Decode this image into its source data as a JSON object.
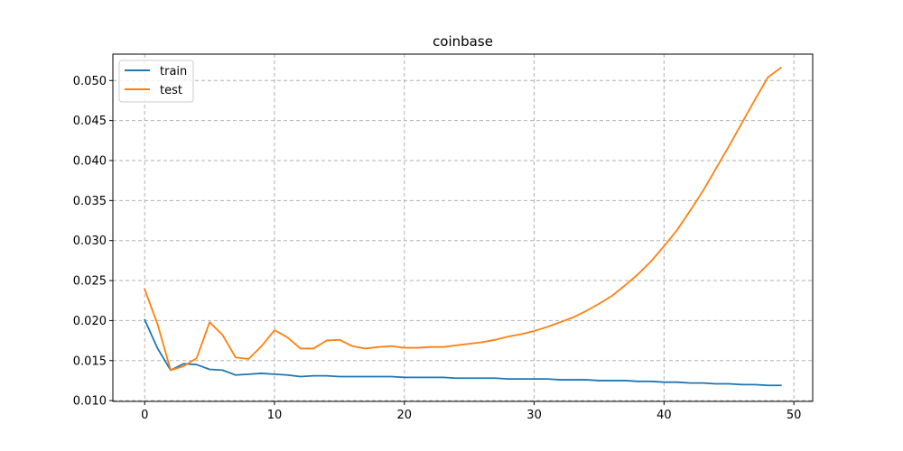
{
  "chart_data": {
    "type": "line",
    "title": "coinbase",
    "xlabel": "",
    "ylabel": "",
    "xlim": [
      -2.45,
      51.45
    ],
    "ylim": [
      0.0099,
      0.0533
    ],
    "xticks": [
      0,
      10,
      20,
      30,
      40,
      50
    ],
    "xtick_labels": [
      "0",
      "10",
      "20",
      "30",
      "40",
      "50"
    ],
    "yticks": [
      0.01,
      0.015,
      0.02,
      0.025,
      0.03,
      0.035,
      0.04,
      0.045,
      0.05
    ],
    "ytick_labels": [
      "0.010",
      "0.015",
      "0.020",
      "0.025",
      "0.030",
      "0.035",
      "0.040",
      "0.045",
      "0.050"
    ],
    "grid": true,
    "legend_position": "top-left",
    "x": [
      0,
      1,
      2,
      3,
      4,
      5,
      6,
      7,
      8,
      9,
      10,
      11,
      12,
      13,
      14,
      15,
      16,
      17,
      18,
      19,
      20,
      21,
      22,
      23,
      24,
      25,
      26,
      27,
      28,
      29,
      30,
      31,
      32,
      33,
      34,
      35,
      36,
      37,
      38,
      39,
      40,
      41,
      42,
      43,
      44,
      45,
      46,
      47,
      48,
      49
    ],
    "series": [
      {
        "name": "train",
        "color": "#1f77b4",
        "values": [
          0.0201,
          0.0165,
          0.0138,
          0.0146,
          0.0145,
          0.0139,
          0.0138,
          0.0132,
          0.0133,
          0.0134,
          0.0133,
          0.0132,
          0.013,
          0.0131,
          0.0131,
          0.013,
          0.013,
          0.013,
          0.013,
          0.013,
          0.0129,
          0.0129,
          0.0129,
          0.0129,
          0.0128,
          0.0128,
          0.0128,
          0.0128,
          0.0127,
          0.0127,
          0.0127,
          0.0127,
          0.0126,
          0.0126,
          0.0126,
          0.0125,
          0.0125,
          0.0125,
          0.0124,
          0.0124,
          0.0123,
          0.0123,
          0.0122,
          0.0122,
          0.0121,
          0.0121,
          0.012,
          0.012,
          0.0119,
          0.0119
        ]
      },
      {
        "name": "test",
        "color": "#ff7f0e",
        "values": [
          0.0239,
          0.0195,
          0.0138,
          0.0143,
          0.0153,
          0.0198,
          0.0182,
          0.0154,
          0.0152,
          0.0168,
          0.0188,
          0.0179,
          0.0165,
          0.0165,
          0.0175,
          0.0176,
          0.0168,
          0.0165,
          0.0167,
          0.0168,
          0.0166,
          0.0166,
          0.0167,
          0.0167,
          0.0169,
          0.0171,
          0.0173,
          0.0176,
          0.018,
          0.0183,
          0.0187,
          0.0192,
          0.0198,
          0.0204,
          0.0212,
          0.0221,
          0.0231,
          0.0244,
          0.0258,
          0.0274,
          0.0293,
          0.0313,
          0.0337,
          0.0362,
          0.039,
          0.0418,
          0.0447,
          0.0476,
          0.0504,
          0.0516
        ]
      }
    ]
  }
}
